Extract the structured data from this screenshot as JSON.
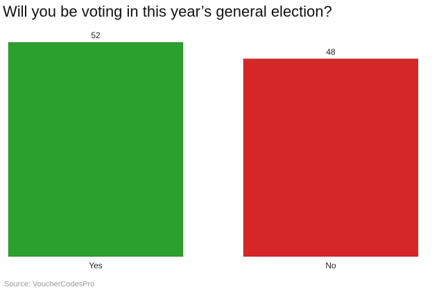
{
  "chart_data": {
    "type": "bar",
    "title": "Will you be voting in this year’s general election?",
    "categories": [
      "Yes",
      "No"
    ],
    "values": [
      52,
      48
    ],
    "colors": [
      "#2ca02c",
      "#d62728"
    ],
    "xlabel": "",
    "ylabel": "",
    "ylim": [
      0,
      52
    ],
    "grid": false,
    "legend": "none",
    "source": "Source: VoucherCodesPro"
  }
}
